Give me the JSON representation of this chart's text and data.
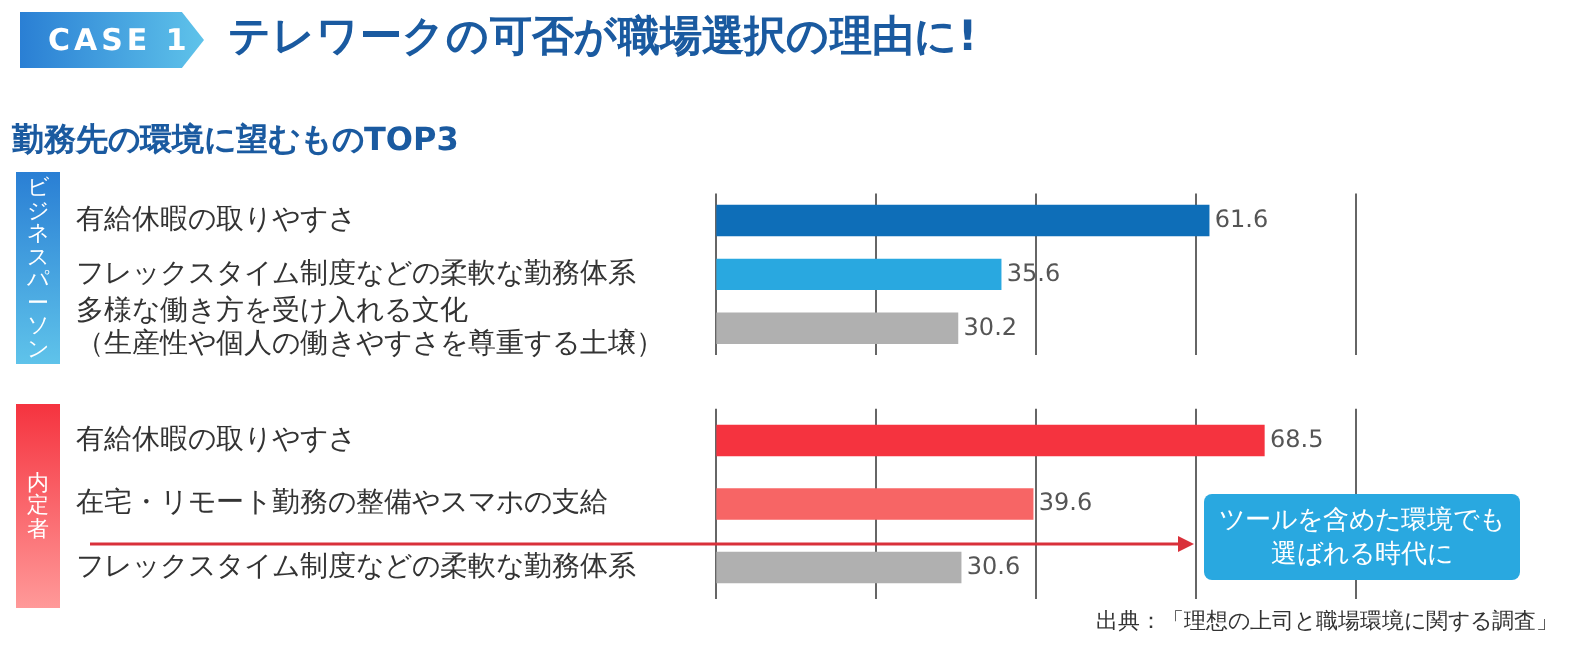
{
  "chart_data": [
    {
      "type": "bar",
      "orientation": "horizontal",
      "title": "テレワークの可否が職場選択の理由に!",
      "subtitle": "勤務先の環境に望むものTOP3",
      "ylabel": "ビジネスパーソン",
      "annotations": [
        "CASE 1"
      ],
      "categories": [
        "有給休暇の取りやすさ",
        "フレックスタイム制度などの柔軟な勤務体系",
        "多様な働き方を受け入れる文化（生産性や個人の働きやすさを尊重する土壌）"
      ],
      "values": [
        61.6,
        35.6,
        30.2
      ],
      "colors": [
        "#0e6eb8",
        "#29a8e0",
        "#b0b0b0"
      ],
      "xlim": [
        0,
        80
      ],
      "xticks": [
        {
          "value": 0,
          "label": null
        },
        {
          "value": 20,
          "label": null
        },
        {
          "value": 40,
          "label": null
        },
        {
          "value": 60,
          "label": null
        },
        {
          "value": 80,
          "label": null
        }
      ],
      "tick_labels": "y",
      "grid": "x",
      "data_labels": true,
      "legend": false
    },
    {
      "type": "bar",
      "orientation": "horizontal",
      "ylabel": "内定者",
      "annotations": [
        "ツールを含めた環境でも選ばれる時代に",
        "出典：「理想の上司と職場環境に関する調査」"
      ],
      "categories": [
        "有給休暇の取りやすさ",
        "在宅・リモート勤務の整備やスマホの支給",
        "フレックスタイム制度などの柔軟な勤務体系"
      ],
      "values": [
        68.5,
        39.6,
        30.6
      ],
      "colors": [
        "#f5333f",
        "#f76565",
        "#b0b0b0"
      ],
      "xlim": [
        0,
        80
      ],
      "xticks": [
        {
          "value": 0,
          "label": null
        },
        {
          "value": 20,
          "label": null
        },
        {
          "value": 40,
          "label": null
        },
        {
          "value": 60,
          "label": null
        },
        {
          "value": 80,
          "label": null
        }
      ],
      "tick_labels": "y",
      "grid": "x",
      "data_labels": true,
      "legend": false
    }
  ]
}
